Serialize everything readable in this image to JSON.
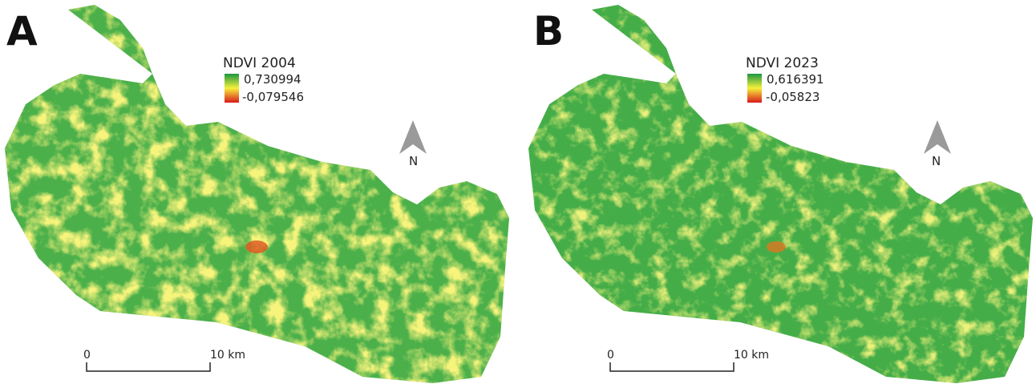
{
  "panels": [
    {
      "label": "A",
      "legend": {
        "title": "NDVI 2004",
        "max": "0,730994",
        "min": "-0,079546"
      },
      "north": "N",
      "scale": {
        "start": "0",
        "end": "10 km"
      }
    },
    {
      "label": "B",
      "legend": {
        "title": "NDVI 2023",
        "max": "0,616391",
        "min": "-0,05823"
      },
      "north": "N",
      "scale": {
        "start": "0",
        "end": "10 km"
      }
    }
  ]
}
